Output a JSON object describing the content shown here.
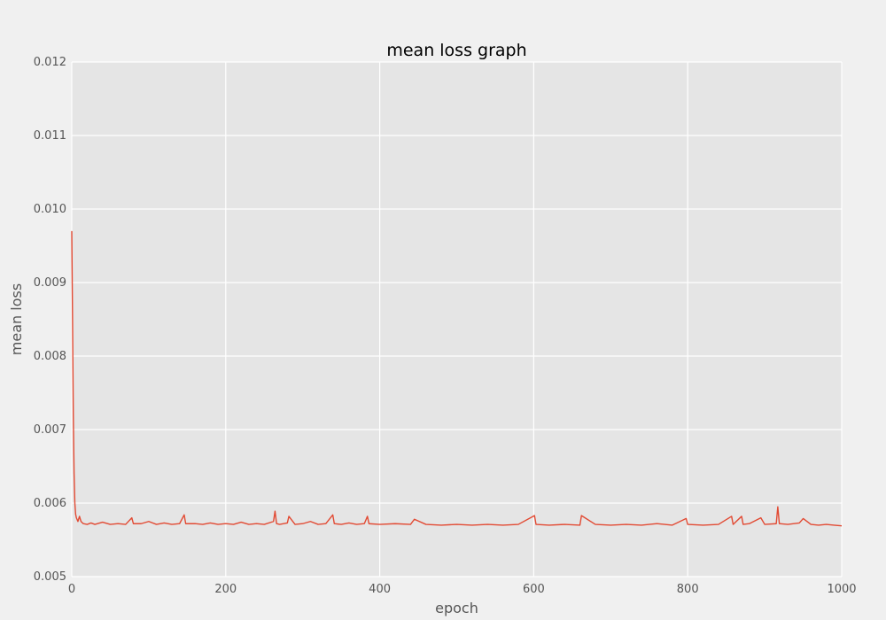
{
  "chart_data": {
    "type": "line",
    "title": "mean loss graph",
    "xlabel": "epoch",
    "ylabel": "mean loss",
    "xlim": [
      0,
      1000
    ],
    "ylim": [
      0.005,
      0.012
    ],
    "x_ticks": [
      0,
      200,
      400,
      600,
      800,
      1000
    ],
    "x_tick_labels": [
      "0",
      "200",
      "400",
      "600",
      "800",
      "1000"
    ],
    "y_ticks": [
      0.005,
      0.006,
      0.007,
      0.008,
      0.009,
      0.01,
      0.011,
      0.012
    ],
    "y_tick_labels": [
      "0.005",
      "0.006",
      "0.007",
      "0.008",
      "0.009",
      "0.010",
      "0.011",
      "0.012"
    ],
    "grid": true,
    "colors": {
      "background": "#f0f0f0",
      "plot_background": "#e5e5e5",
      "grid": "#ffffff",
      "line": "#e24a33"
    },
    "series": [
      {
        "x": [
          0,
          1,
          2,
          3,
          4,
          5,
          6,
          8,
          10,
          12,
          15,
          20,
          25,
          30,
          40,
          50,
          60,
          70,
          78,
          80,
          90,
          100,
          110,
          120,
          130,
          140,
          146,
          148,
          160,
          170,
          180,
          190,
          200,
          210,
          220,
          230,
          240,
          250,
          262,
          264,
          266,
          270,
          280,
          282,
          290,
          300,
          310,
          320,
          330,
          339,
          341,
          350,
          360,
          370,
          380,
          384,
          386,
          400,
          420,
          440,
          445,
          460,
          480,
          500,
          520,
          540,
          560,
          580,
          601,
          603,
          620,
          640,
          660,
          662,
          680,
          700,
          720,
          740,
          760,
          780,
          798,
          800,
          820,
          840,
          857,
          859,
          870,
          872,
          880,
          895,
          900,
          915,
          917,
          919,
          930,
          945,
          950,
          960,
          970,
          980,
          990,
          1000
        ],
        "y": [
          0.0097,
          0.0085,
          0.0072,
          0.0064,
          0.006,
          0.00585,
          0.0058,
          0.00575,
          0.00582,
          0.00575,
          0.00572,
          0.00571,
          0.00573,
          0.00571,
          0.00574,
          0.00571,
          0.00572,
          0.00571,
          0.0058,
          0.00572,
          0.00572,
          0.00575,
          0.00571,
          0.00573,
          0.00571,
          0.00572,
          0.00584,
          0.00572,
          0.00572,
          0.00571,
          0.00573,
          0.00571,
          0.00572,
          0.00571,
          0.00574,
          0.00571,
          0.00572,
          0.00571,
          0.00575,
          0.00589,
          0.00572,
          0.00571,
          0.00573,
          0.00582,
          0.00571,
          0.00572,
          0.00575,
          0.00571,
          0.00572,
          0.00584,
          0.00572,
          0.00571,
          0.00573,
          0.00571,
          0.00572,
          0.00582,
          0.00572,
          0.00571,
          0.00572,
          0.00571,
          0.00578,
          0.00571,
          0.0057,
          0.00571,
          0.0057,
          0.00571,
          0.0057,
          0.00571,
          0.00583,
          0.00571,
          0.0057,
          0.00571,
          0.0057,
          0.00583,
          0.00571,
          0.0057,
          0.00571,
          0.0057,
          0.00572,
          0.0057,
          0.00579,
          0.00571,
          0.0057,
          0.00571,
          0.00582,
          0.00571,
          0.00582,
          0.00571,
          0.00572,
          0.0058,
          0.00571,
          0.00572,
          0.00595,
          0.00572,
          0.00571,
          0.00573,
          0.00579,
          0.00571,
          0.0057,
          0.00571,
          0.0057,
          0.00569
        ]
      }
    ]
  }
}
